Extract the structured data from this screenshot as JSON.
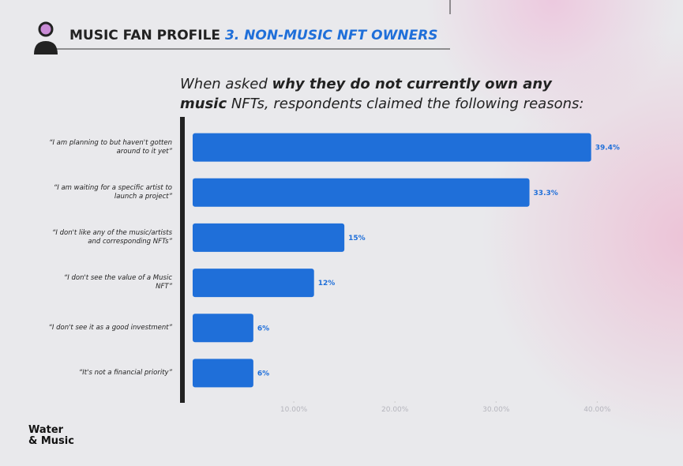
{
  "header": {
    "title": "MUSIC FAN PROFILE",
    "subtitle": "3. NON-MUSIC NFT OWNERS"
  },
  "logo": [
    "Water",
    "& Music"
  ],
  "chart_data": {
    "type": "bar",
    "orientation": "horizontal",
    "title": [
      {
        "text": "When asked ",
        "bold": false
      },
      {
        "text": "why they do not currently own any music",
        "bold": true
      },
      {
        "text": " NFTs, respondents claimed the following reasons:",
        "bold": false
      }
    ],
    "categories": [
      "“I am planning to but haven't gotten around to it yet”",
      "“I am waiting for a specific artist to launch a project”",
      "“I don't like any of the music/artists and corresponding NFTs”",
      "“I don't see the value of a Music NFT”",
      "“I don't see it as a good investment”",
      "“It's not a financial priority”"
    ],
    "values": [
      39.4,
      33.3,
      15,
      12,
      6,
      6
    ],
    "value_labels": [
      "39.4%",
      "33.3%",
      "15%",
      "12%",
      "6%",
      "6%"
    ],
    "color": "#1f6fd9",
    "xlim": [
      0,
      42
    ],
    "xticks": [
      {
        "value": 10,
        "label": "10.00%"
      },
      {
        "value": 20,
        "label": "20.00%"
      },
      {
        "value": 30,
        "label": "30.00%"
      },
      {
        "value": 40,
        "label": "40.00%"
      }
    ],
    "grid": false
  }
}
